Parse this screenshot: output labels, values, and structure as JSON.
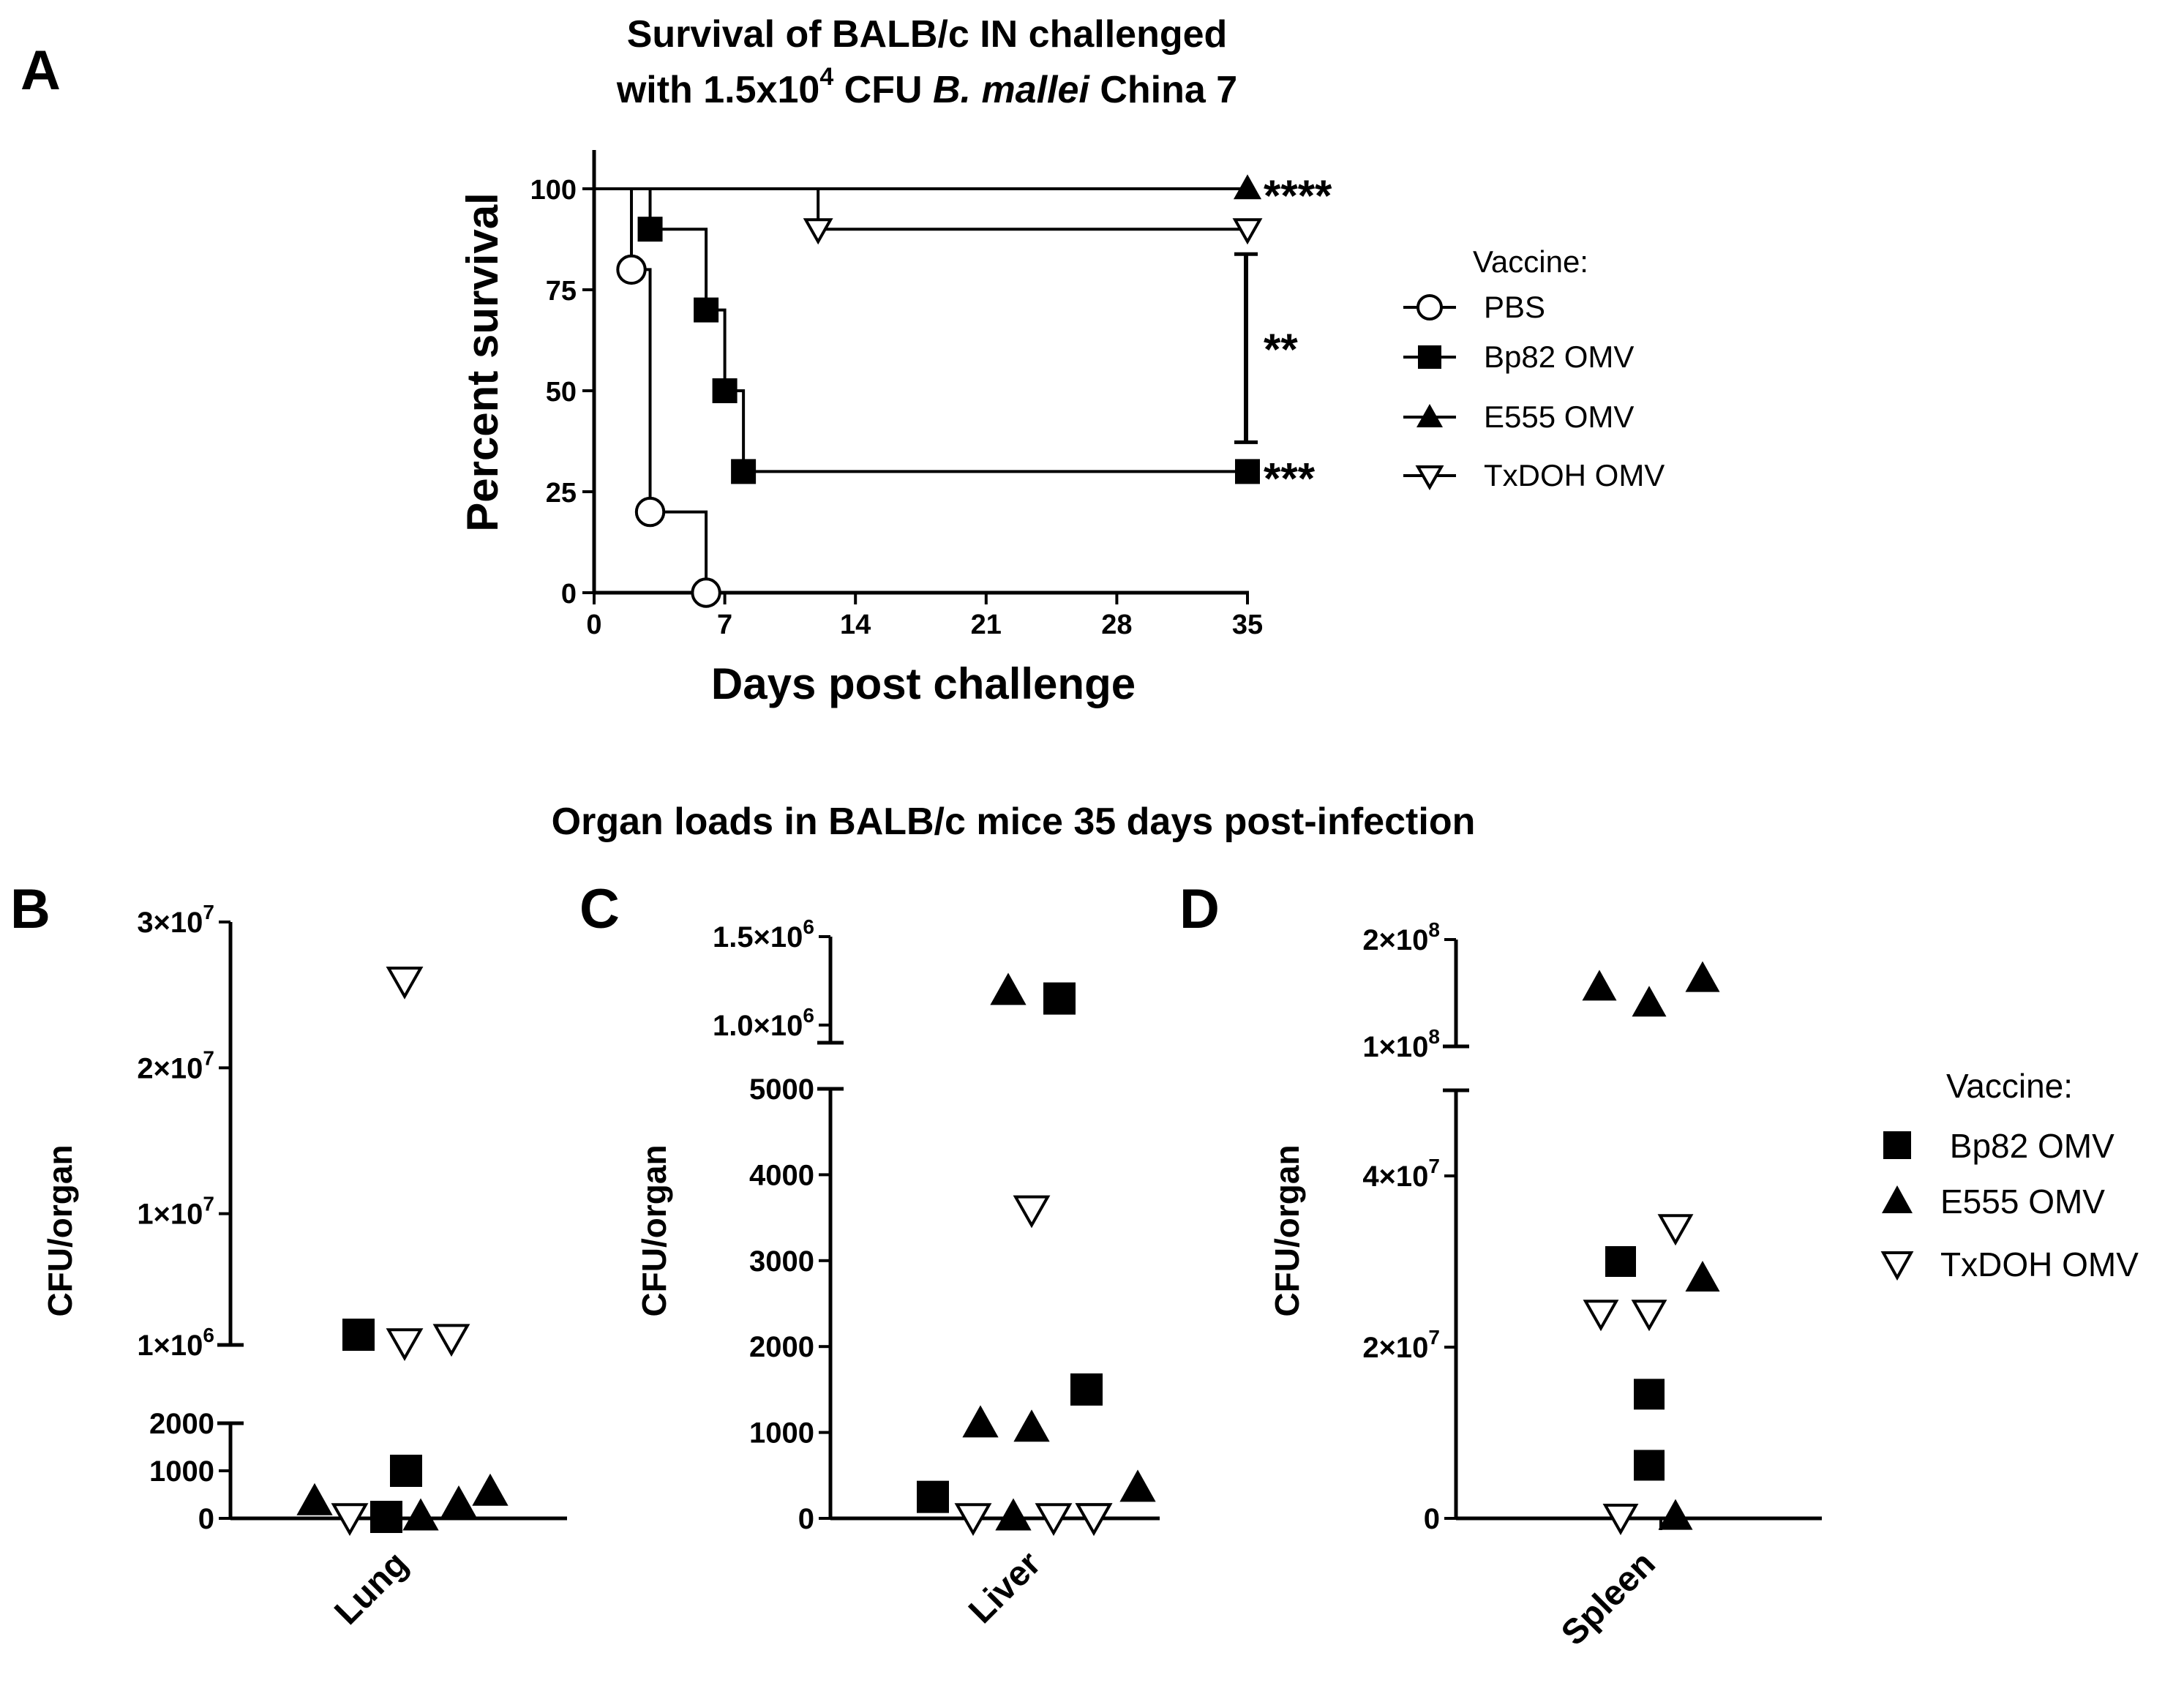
{
  "figure": {
    "panel_letters": [
      "A",
      "B",
      "C",
      "D"
    ],
    "organ_title": "Organ loads in BALB/c mice 35 days post-infection"
  },
  "chart_data": [
    {
      "panel": "A",
      "type": "line",
      "step": true,
      "title_line1": "Survival of  BALB/c IN challenged",
      "title_line2_pre": "with 1.5x10",
      "title_line2_sup": "4",
      "title_line2_mid": " CFU ",
      "title_line2_ital": "B. mallei",
      "title_line2_post": " China 7",
      "xlabel": "Days post challenge",
      "ylabel": "Percent survival",
      "xlim": [
        0,
        35
      ],
      "ylim": [
        0,
        100
      ],
      "xticks": [
        "0",
        "7",
        "14",
        "21",
        "28",
        "35"
      ],
      "yticks": [
        "0",
        "25",
        "50",
        "75",
        "100"
      ],
      "legend_title": "Vaccine:",
      "legend_position": "right",
      "series": [
        {
          "name": "PBS",
          "marker": "circle-open",
          "steps": [
            [
              0,
              100
            ],
            [
              2,
              80
            ],
            [
              3,
              20
            ],
            [
              6,
              0
            ]
          ],
          "markers": [
            [
              2,
              80
            ],
            [
              3,
              20
            ],
            [
              6,
              0
            ]
          ]
        },
        {
          "name": "Bp82 OMV",
          "marker": "square",
          "steps": [
            [
              0,
              100
            ],
            [
              3,
              90
            ],
            [
              6,
              70
            ],
            [
              7,
              50
            ],
            [
              8,
              30
            ],
            [
              35,
              30
            ]
          ],
          "markers": [
            [
              3,
              90
            ],
            [
              6,
              70
            ],
            [
              7,
              50
            ],
            [
              8,
              30
            ],
            [
              35,
              30
            ]
          ]
        },
        {
          "name": "E555 OMV",
          "marker": "triangle-up",
          "steps": [
            [
              0,
              100
            ],
            [
              35,
              100
            ]
          ],
          "markers": [
            [
              35,
              100
            ]
          ]
        },
        {
          "name": "TxDOH OMV",
          "marker": "triangle-down-open",
          "steps": [
            [
              0,
              100
            ],
            [
              12,
              90
            ],
            [
              35,
              90
            ]
          ],
          "markers": [
            [
              12,
              90
            ],
            [
              35,
              90
            ]
          ]
        }
      ],
      "significance": [
        {
          "label": "****",
          "series": "E555 OMV"
        },
        {
          "label": "***",
          "series": "Bp82 OMV"
        },
        {
          "label": "**",
          "between": [
            "TxDOH OMV",
            "Bp82 OMV"
          ]
        }
      ]
    },
    {
      "panel": "B",
      "type": "scatter",
      "category": "Lung",
      "ylabel": "CFU/organ",
      "ylim_lower": [
        0,
        2000
      ],
      "ylim_upper": [
        1000000,
        30000000
      ],
      "yticks_lower": [
        "0",
        "1000",
        "2000"
      ],
      "yticks_upper": [
        {
          "m": "1",
          "sup": "6"
        },
        {
          "m": "1",
          "sup": "7"
        },
        {
          "m": "2",
          "sup": "7"
        },
        {
          "m": "3",
          "sup": "7"
        }
      ],
      "points": [
        {
          "series": "E555 OMV",
          "y": 350
        },
        {
          "series": "TxDOH OMV",
          "y": 0
        },
        {
          "series": "Bp82 OMV",
          "y": 0
        },
        {
          "series": "Bp82 OMV",
          "y": 1000
        },
        {
          "series": "E555 OMV",
          "y": 0
        },
        {
          "series": "E555 OMV",
          "y": 300
        },
        {
          "series": "E555 OMV",
          "y": 550
        },
        {
          "series": "Bp82 OMV",
          "y": 1700000
        },
        {
          "series": "TxDOH OMV",
          "y": 26000000
        },
        {
          "series": "TxDOH OMV",
          "y": 1200000
        },
        {
          "series": "TxDOH OMV",
          "y": 1500000
        }
      ]
    },
    {
      "panel": "C",
      "type": "scatter",
      "category": "Liver",
      "ylabel": "CFU/organ",
      "ylim_lower": [
        0,
        5000
      ],
      "ylim_upper": [
        900000,
        1500000
      ],
      "yticks_lower": [
        "0",
        "1000",
        "2000",
        "3000",
        "4000",
        "5000"
      ],
      "yticks_upper": [
        {
          "m": "1.0",
          "sup": "6"
        },
        {
          "m": "1.5",
          "sup": "6"
        }
      ],
      "points": [
        {
          "series": "Bp82 OMV",
          "y": 250
        },
        {
          "series": "TxDOH OMV",
          "y": 0
        },
        {
          "series": "E555 OMV",
          "y": 1100
        },
        {
          "series": "E555 OMV",
          "y": 0
        },
        {
          "series": "E555 OMV",
          "y": 1050
        },
        {
          "series": "TxDOH OMV",
          "y": 0
        },
        {
          "series": "TxDOH OMV",
          "y": 3600
        },
        {
          "series": "TxDOH OMV",
          "y": 0
        },
        {
          "series": "Bp82 OMV",
          "y": 1500
        },
        {
          "series": "TxDOH OMV",
          "y": 0
        },
        {
          "series": "E555 OMV",
          "y": 350
        },
        {
          "series": "E555 OMV",
          "y": 1190000
        },
        {
          "series": "Bp82 OMV",
          "y": 1150000
        }
      ]
    },
    {
      "panel": "D",
      "type": "scatter",
      "category": "Spleen",
      "ylabel": "CFU/organ",
      "ylim_lower": [
        0,
        50000000
      ],
      "ylim_upper": [
        100000000,
        200000000
      ],
      "yticks_lower": [
        {
          "m": "0",
          "sup": ""
        },
        {
          "m": "2",
          "sup": "7"
        },
        {
          "m": "4",
          "sup": "7"
        }
      ],
      "yticks_upper": [
        {
          "m": "1",
          "sup": "8"
        },
        {
          "m": "2",
          "sup": "8"
        }
      ],
      "points": [
        {
          "series": "E555 OMV",
          "y": 155000000
        },
        {
          "series": "TxDOH OMV",
          "y": 24000000
        },
        {
          "series": "Bp82 OMV",
          "y": 30000000
        },
        {
          "series": "TxDOH OMV",
          "y": 0
        },
        {
          "series": "E555 OMV",
          "y": 140000000
        },
        {
          "series": "TxDOH OMV",
          "y": 24000000
        },
        {
          "series": "Bp82 OMV",
          "y": 14500000
        },
        {
          "series": "Bp82 OMV",
          "y": 6200000
        },
        {
          "series": "E555 OMV",
          "y": 0
        },
        {
          "series": "TxDOH OMV",
          "y": 34000000
        },
        {
          "series": "E555 OMV",
          "y": 28000000
        },
        {
          "series": "E555 OMV",
          "y": 163000000
        }
      ]
    }
  ],
  "legend_organ": {
    "title": "Vaccine:",
    "entries": [
      {
        "name": " Bp82 OMV",
        "marker": "square"
      },
      {
        "name": "E555 OMV",
        "marker": "triangle-up"
      },
      {
        "name": "TxDOH OMV",
        "marker": "triangle-down-open"
      }
    ]
  }
}
